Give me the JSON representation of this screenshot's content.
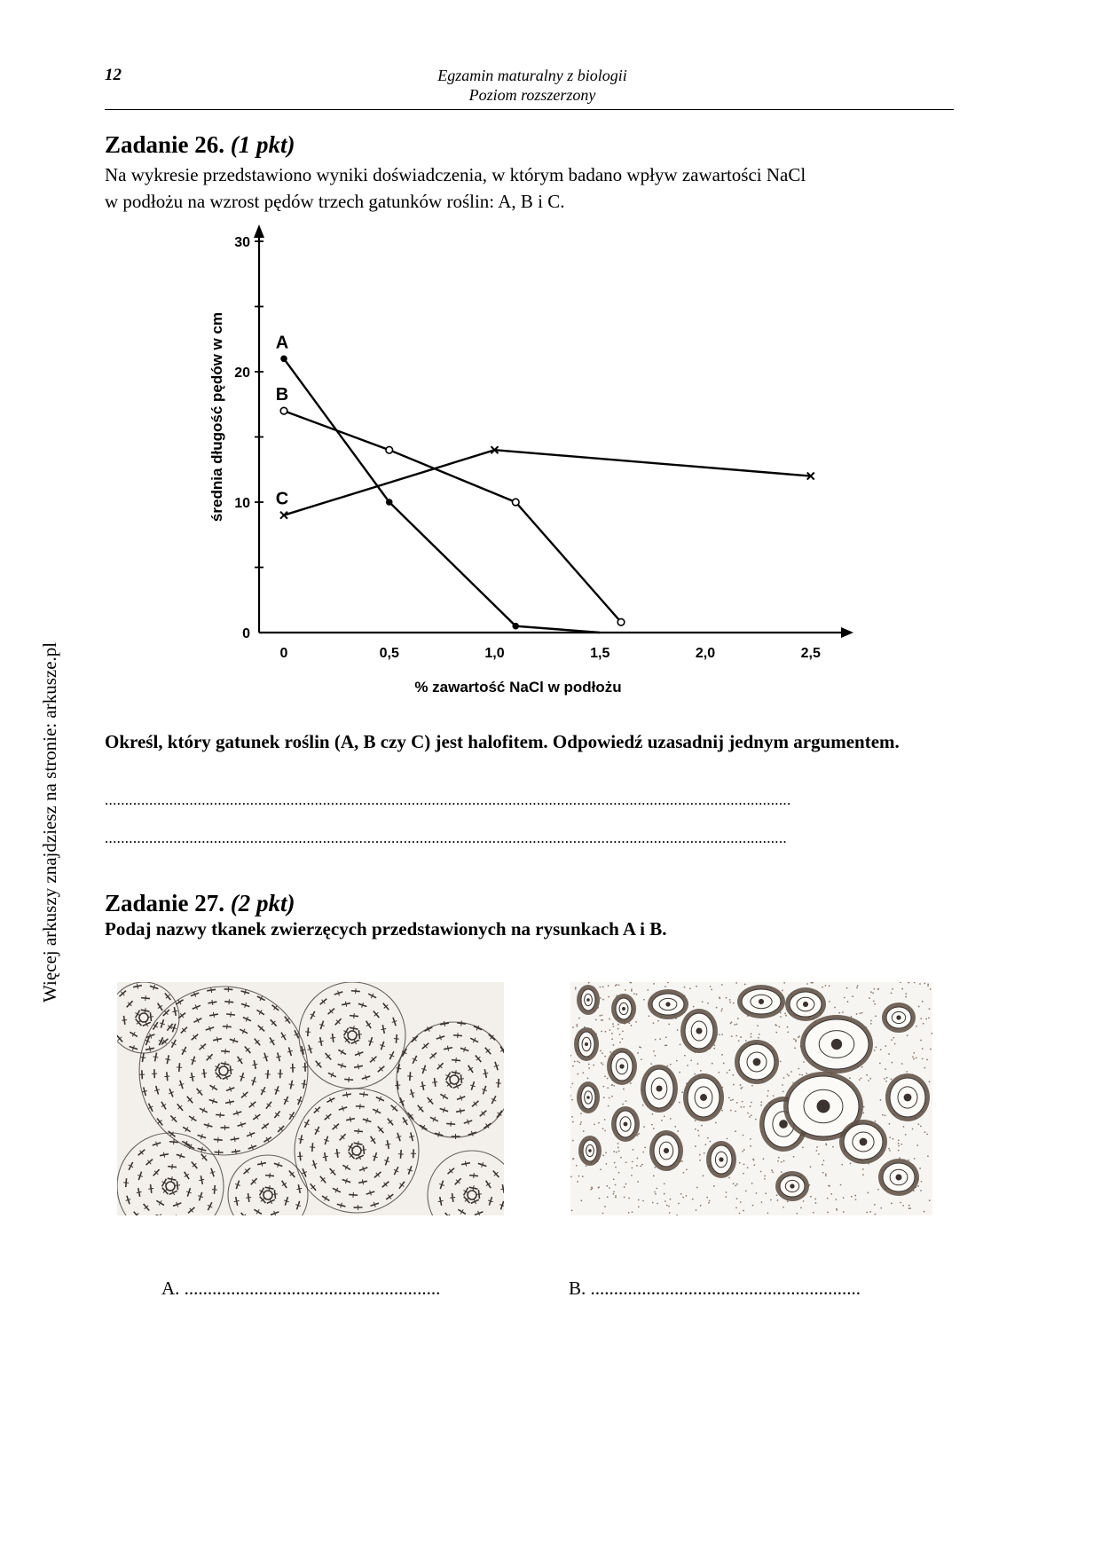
{
  "header": {
    "page_number": "12",
    "title_line1": "Egzamin maturalny z biologii",
    "title_line2": "Poziom rozszerzony"
  },
  "side_text": "Więcej arkuszy znajdziesz na stronie: arkusze.pl",
  "task26": {
    "title_prefix": "Zadanie 26.",
    "points": "(1 pkt)",
    "intro_line1": "Na wykresie przedstawiono wyniki doświadczenia, w którym badano wpływ zawartości NaCl",
    "intro_line2": "w podłożu na wzrost pędów trzech gatunków roślin: A, B i C.",
    "question": "Określ, który gatunek roślin (A, B czy C) jest halofitem. Odpowiedź uzasadnij jednym argumentem.",
    "answer_line1": "..........................................................................................................................................................................",
    "answer_line2": "........................................................................................................................................................................."
  },
  "task27": {
    "title_prefix": "Zadanie 27.",
    "points": "(2 pkt)",
    "question": "Podaj nazwy tkanek zwierzęcych przedstawionych na rysunkach A i B.",
    "answer_a": "A. .......................................................",
    "answer_b": "B. .........................................................."
  },
  "chart_data": {
    "type": "line",
    "xlabel": "% zawartość NaCl w podłożu",
    "ylabel": "średnia długość pędów w cm",
    "xlim": [
      0,
      2.6
    ],
    "ylim": [
      0,
      30
    ],
    "x_ticks": [
      "0",
      "0,5",
      "1,0",
      "1,5",
      "2,0",
      "2,5"
    ],
    "x_tick_values": [
      0,
      0.5,
      1.0,
      1.5,
      2.0,
      2.5
    ],
    "y_ticks": [
      "0",
      "10",
      "20",
      "30"
    ],
    "y_tick_values": [
      0,
      10,
      20,
      30
    ],
    "grid": false,
    "series": [
      {
        "name": "A",
        "marker": "filled-circle",
        "points": [
          [
            0,
            21
          ],
          [
            0.5,
            10
          ],
          [
            1.1,
            0.5
          ],
          [
            1.5,
            0
          ]
        ]
      },
      {
        "name": "B",
        "marker": "open-circle",
        "points": [
          [
            0,
            17
          ],
          [
            0.5,
            14
          ],
          [
            1.1,
            10
          ],
          [
            1.6,
            0.8
          ]
        ]
      },
      {
        "name": "C",
        "marker": "cross",
        "points": [
          [
            0,
            9
          ],
          [
            1.0,
            14
          ],
          [
            2.5,
            12
          ]
        ]
      }
    ]
  }
}
